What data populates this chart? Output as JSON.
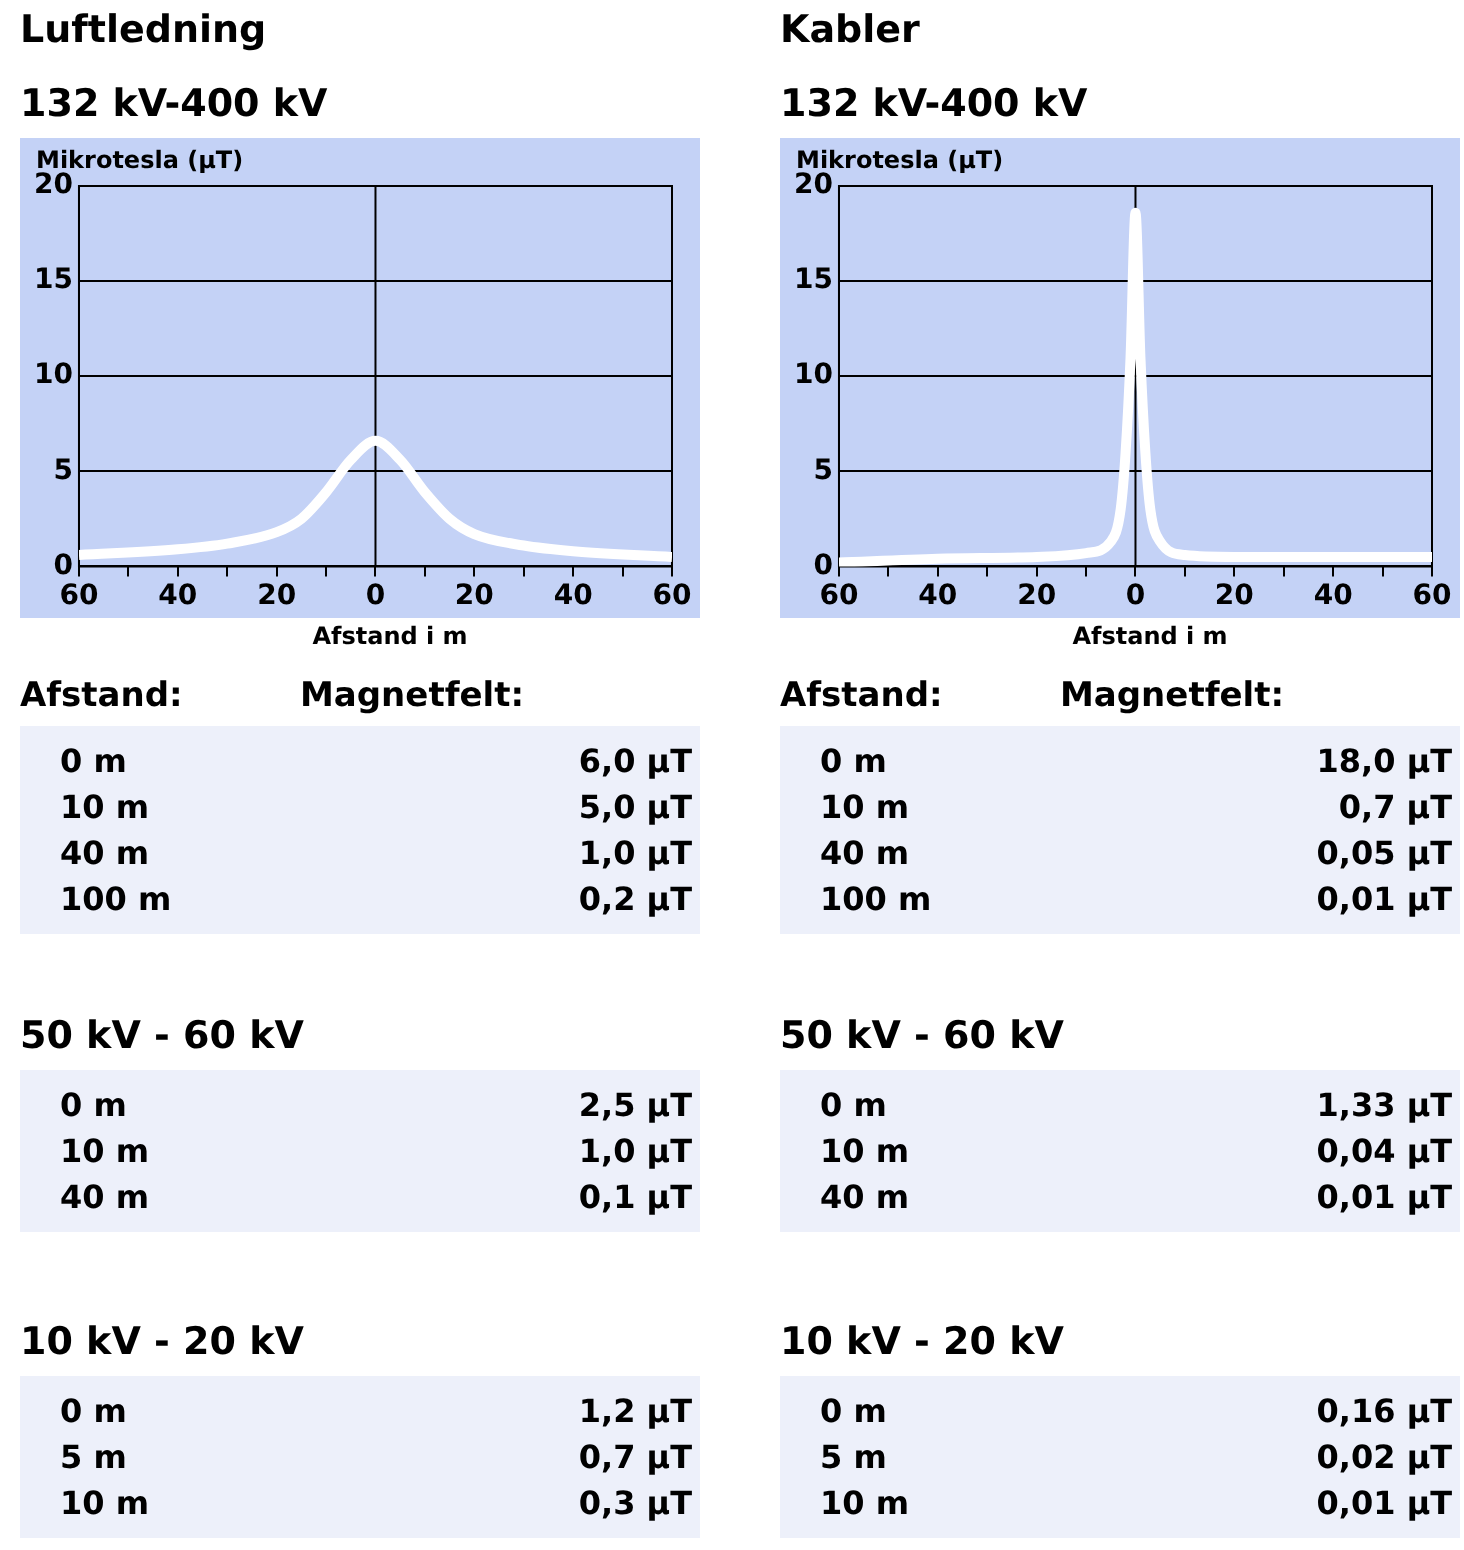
{
  "chart_data": [
    {
      "type": "line",
      "title": "Luftledning",
      "subtitle": "132 kV-400 kV",
      "xlabel": "Afstand i m",
      "ylabel": "Mikrotesla (µT)",
      "series": [
        {
          "color": "#ffffff",
          "x": [
            -60,
            -40,
            -30,
            -20,
            -15,
            -10,
            -5,
            0,
            5,
            10,
            15,
            20,
            30,
            40,
            60
          ],
          "values": [
            0.6,
            0.9,
            1.2,
            1.8,
            2.5,
            3.9,
            5.6,
            6.6,
            5.6,
            3.9,
            2.5,
            1.7,
            1.1,
            0.8,
            0.5
          ]
        }
      ],
      "xlim": [
        -60,
        60
      ],
      "xticks": [
        {
          "value": -60,
          "label": "60"
        },
        {
          "value": -50,
          "label": null
        },
        {
          "value": -40,
          "label": "40"
        },
        {
          "value": -30,
          "label": null
        },
        {
          "value": -20,
          "label": "20"
        },
        {
          "value": -10,
          "label": null
        },
        0,
        {
          "value": 10,
          "label": null
        },
        20,
        {
          "value": 30,
          "label": null
        },
        40,
        {
          "value": 50,
          "label": null
        },
        60
      ],
      "ylim": [
        0,
        20
      ],
      "yticks": [
        0,
        5,
        10,
        15,
        20
      ],
      "grid": "y",
      "legend": false,
      "marker": "none",
      "line_style": "solid",
      "ref_lines": [
        {
          "axis": "x",
          "value": 0,
          "color": "#000000"
        }
      ]
    },
    {
      "type": "line",
      "title": "Kabler",
      "subtitle": "132 kV-400 kV",
      "xlabel": "Afstand i m",
      "ylabel": "Mikrotesla (µT)",
      "series": [
        {
          "color": "#ffffff",
          "x": [
            -60,
            -40,
            -20,
            -10,
            -5,
            -3,
            -2,
            -1,
            0,
            1,
            2,
            3,
            5,
            10,
            20,
            40,
            60
          ],
          "values": [
            0.2,
            0.4,
            0.5,
            0.7,
            1.3,
            3,
            6,
            11,
            18.6,
            11,
            6,
            3,
            1.3,
            0.6,
            0.5,
            0.5,
            0.5
          ]
        }
      ],
      "xlim": [
        -60,
        60
      ],
      "xticks": [
        {
          "value": -60,
          "label": "60"
        },
        {
          "value": -50,
          "label": null
        },
        {
          "value": -40,
          "label": "40"
        },
        {
          "value": -30,
          "label": null
        },
        {
          "value": -20,
          "label": "20"
        },
        {
          "value": -10,
          "label": null
        },
        0,
        {
          "value": 10,
          "label": null
        },
        20,
        {
          "value": 30,
          "label": null
        },
        40,
        {
          "value": 50,
          "label": null
        },
        60
      ],
      "ylim": [
        0,
        20
      ],
      "yticks": [
        0,
        5,
        10,
        15,
        20
      ],
      "grid": "y",
      "legend": false,
      "marker": "none",
      "line_style": "solid",
      "ref_lines": [
        {
          "axis": "x",
          "value": 0,
          "color": "#000000"
        }
      ]
    },
    {
      "type": "other",
      "xlabel": "Afstand:",
      "ylabel": "Magnetfelt:",
      "categories": [
        "0 m",
        "10 m",
        "40 m",
        "100 m"
      ],
      "value_labels": [
        "6,0 µT",
        "5,0 µT",
        "1,0 µT",
        "0,2 µT"
      ]
    },
    {
      "type": "other",
      "xlabel": "Afstand:",
      "ylabel": "Magnetfelt:",
      "categories": [
        "0 m",
        "10 m",
        "40 m",
        "100 m"
      ],
      "value_labels": [
        "18,0 µT",
        "0,7 µT",
        "0,05 µT",
        "0,01 µT"
      ]
    },
    {
      "type": "other",
      "title": "50 kV - 60 kV",
      "categories": [
        "0 m",
        "10 m",
        "40 m"
      ],
      "value_labels": [
        "2,5 µT",
        "1,0 µT",
        "0,1 µT"
      ]
    },
    {
      "type": "other",
      "title": "50 kV - 60 kV",
      "categories": [
        "0 m",
        "10 m",
        "40 m"
      ],
      "value_labels": [
        "1,33 µT",
        "0,04 µT",
        "0,01 µT"
      ]
    },
    {
      "type": "other",
      "title": "10 kV - 20 kV",
      "categories": [
        "0 m",
        "5 m",
        "10 m"
      ],
      "value_labels": [
        "1,2 µT",
        "0,7 µT",
        "0,3 µT"
      ]
    },
    {
      "type": "other",
      "title": "10 kV - 20 kV",
      "categories": [
        "0 m",
        "5 m",
        "10 m"
      ],
      "value_labels": [
        "0,16 µT",
        "0,02 µT",
        "0,01 µT"
      ]
    }
  ]
}
